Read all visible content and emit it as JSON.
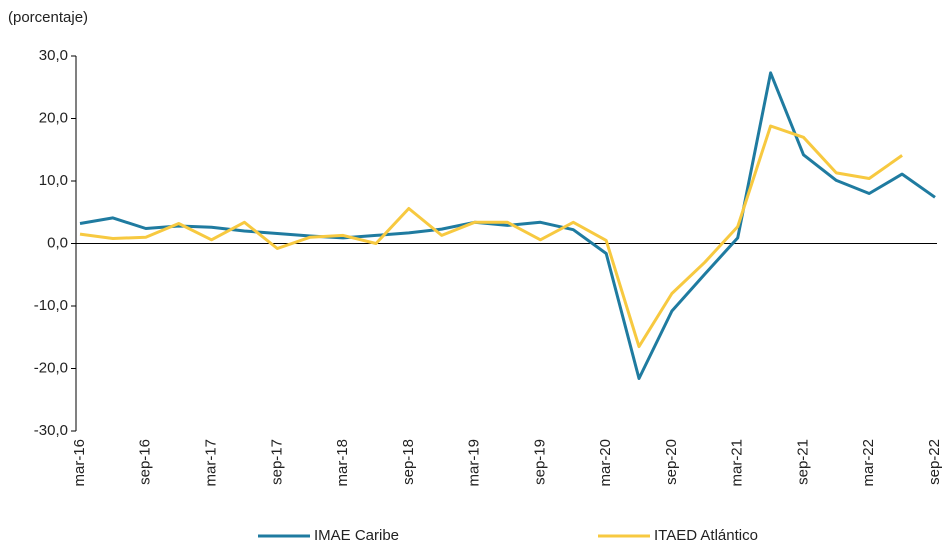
{
  "chart_data": {
    "type": "line",
    "subtitle": "(porcentaje)",
    "categories": [
      "mar-16",
      null,
      "sep-16",
      null,
      "mar-17",
      null,
      "sep-17",
      null,
      "mar-18",
      null,
      "sep-18",
      null,
      "mar-19",
      null,
      "sep-19",
      null,
      "mar-20",
      null,
      "sep-20",
      null,
      "mar-21",
      null,
      "sep-21",
      null,
      "mar-22",
      null,
      "sep-22"
    ],
    "series": [
      {
        "name": "IMAE Caribe",
        "color": "#1f7ba0",
        "values": [
          3.2,
          4.1,
          2.4,
          2.8,
          2.6,
          2.0,
          1.6,
          1.2,
          0.9,
          1.3,
          1.7,
          2.3,
          3.4,
          2.9,
          3.4,
          2.2,
          -1.6,
          -21.6,
          -10.8,
          -4.9,
          0.9,
          27.3,
          14.2,
          10.1,
          8.0,
          11.1,
          7.4
        ]
      },
      {
        "name": "ITAED Atlántico",
        "color": "#f7c940",
        "values": [
          1.5,
          0.8,
          1.0,
          3.2,
          0.6,
          3.4,
          -0.8,
          1.0,
          1.3,
          0.0,
          5.6,
          1.3,
          3.4,
          3.4,
          0.6,
          3.4,
          0.5,
          -16.5,
          -8.0,
          -3.0,
          2.7,
          18.8,
          17.0,
          11.3,
          10.4,
          14.1,
          null
        ]
      }
    ],
    "ylim": [
      -30,
      30
    ],
    "yticks": [
      {
        "value": -30,
        "label": "-30,0"
      },
      {
        "value": -20,
        "label": "-20,0"
      },
      {
        "value": -10,
        "label": "-10,0"
      },
      {
        "value": 0,
        "label": "0,0"
      },
      {
        "value": 10,
        "label": "10,0"
      },
      {
        "value": 20,
        "label": "20,0"
      },
      {
        "value": 30,
        "label": "30,0"
      }
    ],
    "legend": "bottom"
  }
}
